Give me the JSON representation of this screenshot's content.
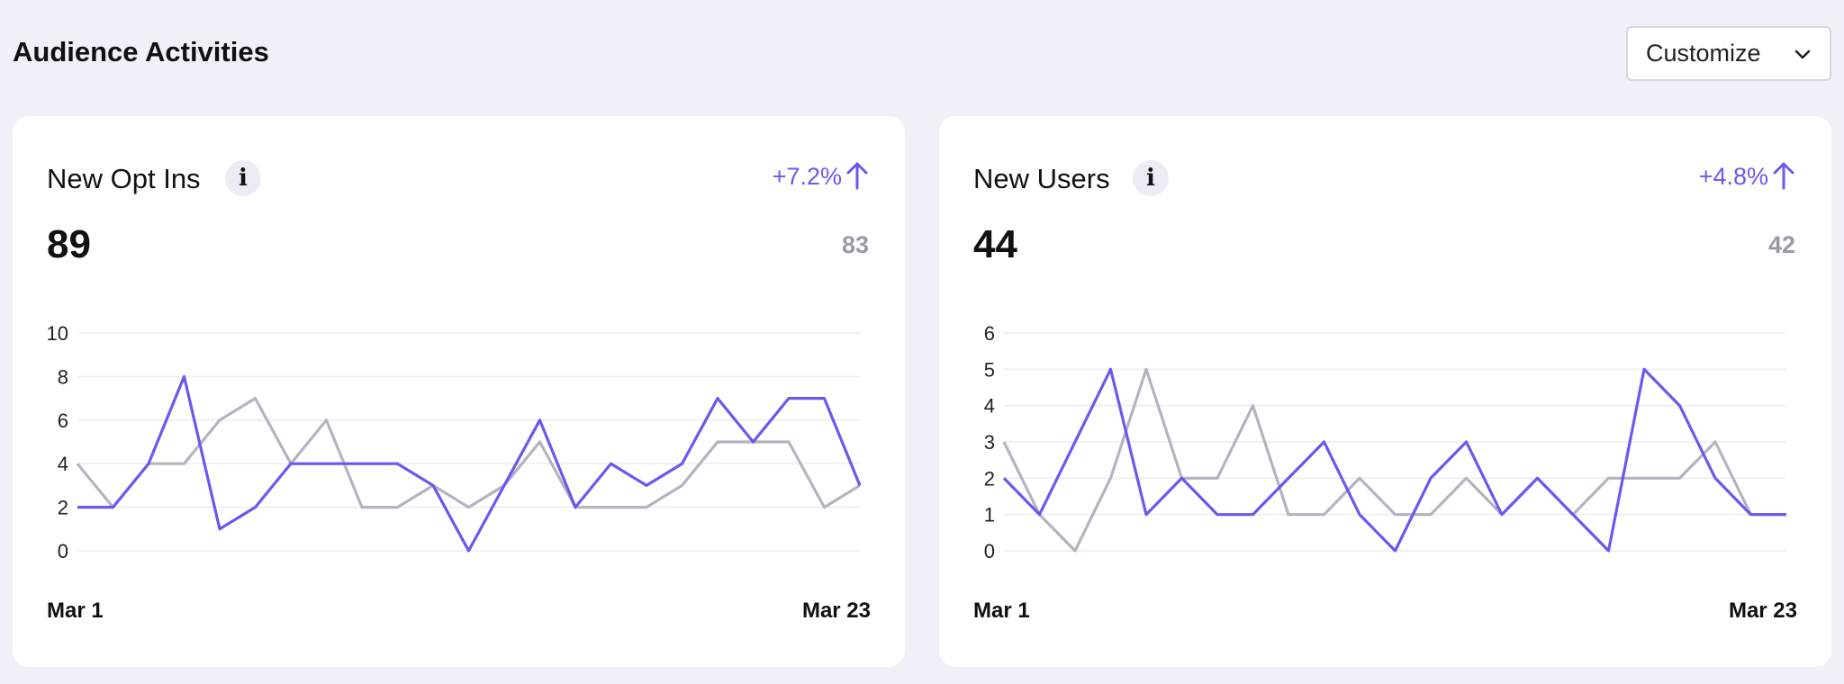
{
  "header": {
    "title": "Audience Activities"
  },
  "customize": {
    "label": "Customize",
    "icon": "chevron-down-icon"
  },
  "colors": {
    "current": "#6b58f0",
    "previous": "#b4b4c0",
    "grid": "#ececf2"
  },
  "cards": [
    {
      "title": "New Opt Ins",
      "info_icon": "i",
      "change": "+7.2%",
      "value": "89",
      "previous_value": "83",
      "x_start": "Mar 1",
      "x_end": "Mar 23"
    },
    {
      "title": "New Users",
      "info_icon": "i",
      "change": "+4.8%",
      "value": "44",
      "previous_value": "42",
      "x_start": "Mar 1",
      "x_end": "Mar 23"
    }
  ],
  "chart_data": [
    {
      "type": "line",
      "x_start": "Mar 1",
      "x_end": "Mar 23",
      "ylim": [
        0,
        10
      ],
      "yticks": [
        "0",
        "2",
        "4",
        "6",
        "8",
        "10"
      ],
      "series": [
        {
          "values": [
            2,
            2,
            4,
            8,
            1,
            2,
            4,
            4,
            4,
            4,
            3,
            0,
            3,
            6,
            2,
            4,
            3,
            4,
            7,
            5,
            7,
            7,
            3
          ]
        },
        {
          "values": [
            4,
            2,
            4,
            4,
            6,
            7,
            4,
            6,
            2,
            2,
            3,
            2,
            3,
            5,
            2,
            2,
            2,
            3,
            5,
            5,
            5,
            2,
            3
          ]
        }
      ]
    },
    {
      "type": "line",
      "x_start": "Mar 1",
      "x_end": "Mar 23",
      "ylim": [
        0,
        6
      ],
      "yticks": [
        "0",
        "1",
        "2",
        "3",
        "4",
        "5",
        "6"
      ],
      "series": [
        {
          "values": [
            2,
            1,
            3,
            5,
            1,
            2,
            1,
            1,
            2,
            3,
            1,
            0,
            2,
            3,
            1,
            2,
            1,
            0,
            5,
            4,
            2,
            1,
            1
          ]
        },
        {
          "values": [
            3,
            1,
            0,
            2,
            5,
            2,
            2,
            4,
            1,
            1,
            2,
            1,
            1,
            2,
            1,
            2,
            1,
            2,
            2,
            2,
            3,
            1,
            1
          ]
        }
      ]
    }
  ]
}
